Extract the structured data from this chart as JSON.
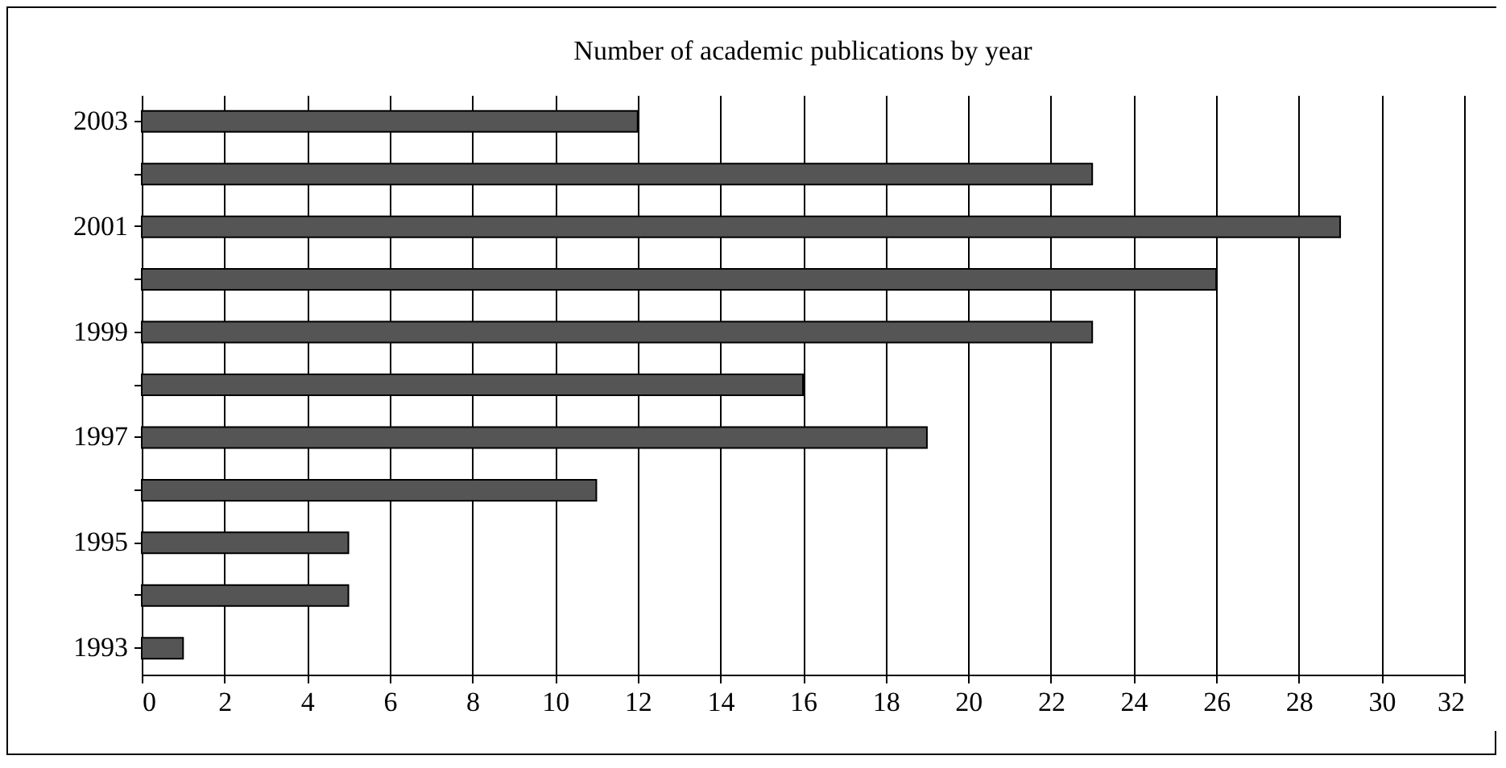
{
  "chart_data": {
    "type": "bar",
    "orientation": "horizontal",
    "title": "Number of academic publications by year",
    "categories": [
      "2003",
      null,
      "2001",
      null,
      "1999",
      null,
      "1997",
      null,
      "1995",
      null,
      "1993"
    ],
    "values": [
      12,
      23,
      29,
      26,
      23,
      16,
      19,
      11,
      5,
      5,
      1
    ],
    "color": "#555555",
    "xlim": [
      0,
      32
    ],
    "xticks": [
      0,
      2,
      4,
      6,
      8,
      10,
      12,
      14,
      16,
      18,
      20,
      22,
      24,
      26,
      28,
      30,
      32
    ],
    "grid": "x"
  }
}
